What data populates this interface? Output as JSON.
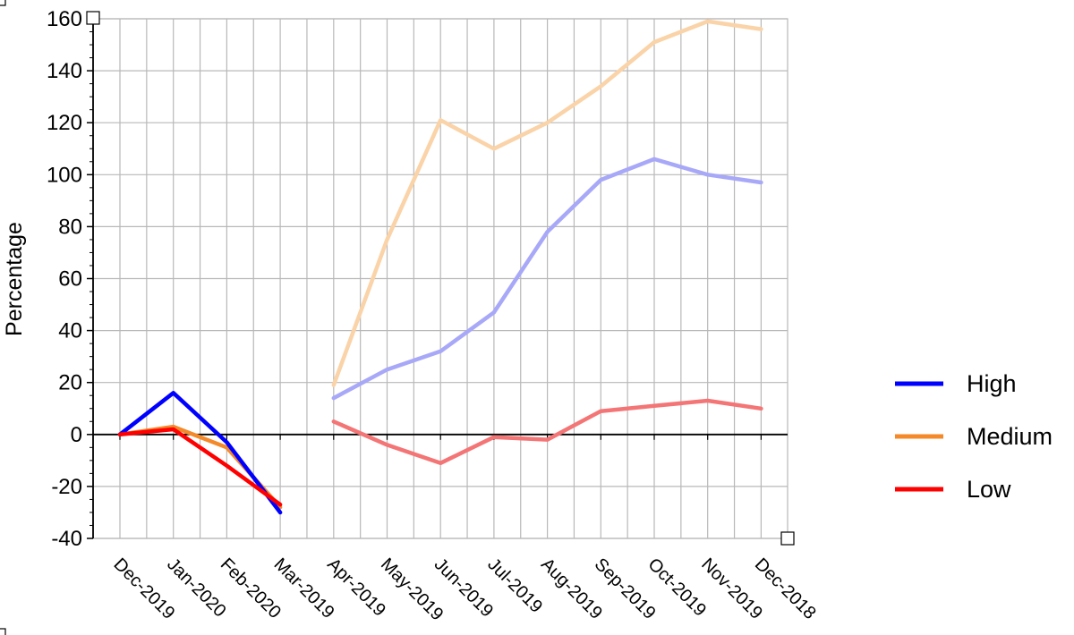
{
  "chart_data": {
    "type": "line",
    "ylabel": "Percentage",
    "xlabel": "",
    "title": "",
    "categories": [
      "Dec-2019",
      "Jan-2020",
      "Feb-2020",
      "Mar-2019",
      "Apr-2019",
      "May-2019",
      "Jun-2019",
      "Jul-2019",
      "Aug-2019",
      "Sep-2019",
      "Oct-2019",
      "Nov-2019",
      "Dec-2018"
    ],
    "ylim": [
      -40,
      160
    ],
    "yticks": [
      -40,
      -20,
      0,
      20,
      40,
      60,
      80,
      100,
      120,
      140,
      160
    ],
    "grid": true,
    "legend_position": "right",
    "series": [
      {
        "name": "High",
        "color": "#0000ff",
        "faded_color": "#a8a8f8",
        "values": [
          0,
          16,
          -3,
          -30,
          14,
          25,
          32,
          47,
          78,
          98,
          106,
          100,
          97
        ]
      },
      {
        "name": "Medium",
        "color": "#f4892a",
        "faded_color": "#fad3a8",
        "values": [
          0,
          3,
          -5,
          -28,
          19,
          75,
          121,
          110,
          120,
          134,
          151,
          159,
          156
        ]
      },
      {
        "name": "Low",
        "color": "#ff0000",
        "faded_color": "#f47575",
        "values": [
          0,
          2,
          -12,
          -27,
          5,
          -4,
          -11,
          -1,
          -2,
          9,
          11,
          13,
          10
        ]
      }
    ],
    "segments": [
      {
        "from": 0,
        "to": 3,
        "style": "solid"
      },
      {
        "from": 4,
        "to": 12,
        "style": "faded"
      }
    ]
  }
}
